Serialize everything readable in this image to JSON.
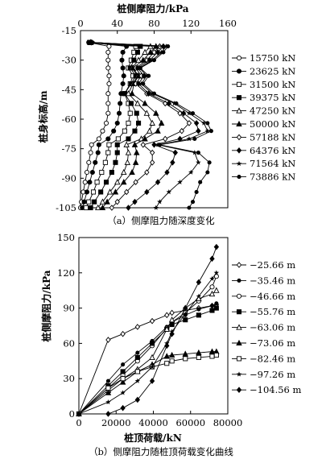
{
  "chart_data": [
    {
      "type": "line",
      "panel": "a",
      "caption": "（a）侧摩阻力随深度变化",
      "xlabel": "桩侧摩阻力/kPa",
      "ylabel": "桩身标高/m",
      "xlim": [
        0,
        160
      ],
      "ylim": [
        -105,
        -15
      ],
      "x_ticks": [
        0,
        40,
        80,
        120,
        160
      ],
      "y_ticks": [
        -15,
        -30,
        -45,
        -60,
        -75,
        -90,
        -105
      ],
      "x_axis_position": "top",
      "legend_position": "right",
      "y": [
        -105,
        -102,
        -97,
        -92,
        -87,
        -82,
        -77,
        -73,
        -70,
        -66,
        -62,
        -57,
        -52,
        -47,
        -42,
        -38,
        -34,
        -30,
        -26,
        -23,
        -21
      ],
      "series": [
        {
          "name": "15750 kN",
          "marker": "open-circle",
          "values": [
            0,
            1,
            3,
            5,
            7,
            9,
            11,
            12,
            20,
            24,
            28,
            30,
            30,
            30,
            31,
            31,
            30,
            30,
            30,
            31,
            9
          ]
        },
        {
          "name": "23625 kN",
          "marker": "filled-circle",
          "values": [
            2,
            4,
            7,
            10,
            13,
            16,
            19,
            20,
            30,
            36,
            40,
            42,
            43,
            44,
            46,
            47,
            46,
            45,
            46,
            50,
            9
          ]
        },
        {
          "name": "31500 kN",
          "marker": "open-square",
          "values": [
            6,
            9,
            14,
            18,
            23,
            27,
            30,
            31,
            41,
            48,
            52,
            54,
            52,
            48,
            54,
            57,
            52,
            55,
            58,
            60,
            10
          ]
        },
        {
          "name": "39375 kN",
          "marker": "filled-square",
          "values": [
            11,
            15,
            22,
            28,
            34,
            38,
            40,
            40,
            52,
            59,
            63,
            61,
            55,
            48,
            55,
            60,
            54,
            58,
            62,
            65,
            10
          ]
        },
        {
          "name": "47250 kN",
          "marker": "open-triangle",
          "values": [
            19,
            24,
            32,
            40,
            47,
            51,
            52,
            50,
            66,
            75,
            78,
            72,
            62,
            52,
            57,
            62,
            56,
            63,
            70,
            76,
            11
          ]
        },
        {
          "name": "50000 kN",
          "marker": "filled-triangle",
          "values": [
            24,
            29,
            38,
            47,
            56,
            60,
            61,
            59,
            70,
            84,
            88,
            82,
            70,
            56,
            58,
            63,
            57,
            68,
            76,
            82,
            11
          ]
        },
        {
          "name": "57188 kN",
          "marker": "open-diamond",
          "values": [
            34,
            40,
            50,
            60,
            72,
            78,
            78,
            68,
            92,
            110,
            118,
            108,
            92,
            72,
            60,
            66,
            60,
            72,
            80,
            86,
            12
          ]
        },
        {
          "name": "64376 kN",
          "marker": "filled-diamond",
          "values": [
            52,
            59,
            72,
            84,
            94,
            100,
            103,
            80,
            108,
            128,
            126,
            112,
            96,
            74,
            63,
            69,
            62,
            75,
            84,
            90,
            12
          ]
        },
        {
          "name": "71564 kN",
          "marker": "star",
          "values": [
            82,
            86,
            96,
            108,
            120,
            128,
            124,
            84,
            118,
            138,
            134,
            118,
            102,
            78,
            66,
            72,
            64,
            78,
            88,
            93,
            13
          ]
        },
        {
          "name": "73886 kN",
          "marker": "filled-dot",
          "values": [
            118,
            122,
            126,
            130,
            138,
            140,
            128,
            86,
            124,
            142,
            138,
            122,
            104,
            80,
            68,
            74,
            65,
            80,
            90,
            95,
            13
          ]
        }
      ]
    },
    {
      "type": "line",
      "panel": "b",
      "caption": "（b）侧摩阻力随桩顶荷载变化曲线",
      "xlabel": "桩顶荷载/kN",
      "ylabel": "桩侧摩阻力/kPa",
      "xlim": [
        0,
        80000
      ],
      "ylim": [
        0,
        150
      ],
      "x_ticks": [
        0,
        20000,
        40000,
        60000,
        80000
      ],
      "y_ticks": [
        0,
        30,
        60,
        90,
        120,
        150
      ],
      "legend_position": "right",
      "x": [
        0,
        15750,
        23625,
        31500,
        39375,
        47250,
        50000,
        57188,
        64376,
        71564,
        73886
      ],
      "series": [
        {
          "name": "−25.66 m",
          "marker": "open-diamond",
          "values": [
            0,
            63,
            68,
            74,
            79,
            84,
            86,
            88,
            90,
            92,
            93
          ]
        },
        {
          "name": "−35.46 m",
          "marker": "filled-dot",
          "values": [
            0,
            28,
            42,
            52,
            62,
            74,
            78,
            84,
            89,
            92,
            94
          ]
        },
        {
          "name": "−46.66 m",
          "marker": "open-circle",
          "values": [
            0,
            22,
            33,
            45,
            58,
            73,
            78,
            86,
            96,
            108,
            117
          ]
        },
        {
          "name": "−55.76 m",
          "marker": "filled-square",
          "values": [
            0,
            24,
            36,
            48,
            60,
            72,
            76,
            80,
            84,
            88,
            90
          ]
        },
        {
          "name": "−63.06 m",
          "marker": "open-triangle",
          "values": [
            0,
            20,
            30,
            38,
            48,
            72,
            80,
            90,
            98,
            102,
            105
          ]
        },
        {
          "name": "−73.06 m",
          "marker": "filled-triangle",
          "values": [
            0,
            18,
            27,
            36,
            42,
            49,
            50,
            51,
            52,
            53,
            53
          ]
        },
        {
          "name": "−82.46 m",
          "marker": "open-square",
          "values": [
            0,
            22,
            30,
            36,
            40,
            43,
            45,
            47,
            48,
            49,
            50
          ]
        },
        {
          "name": "−97.26 m",
          "marker": "star",
          "values": [
            0,
            10,
            18,
            28,
            40,
            60,
            70,
            85,
            100,
            115,
            120
          ]
        },
        {
          "name": "−104.56 m",
          "marker": "filled-diamond",
          "values": [
            0,
            0,
            5,
            12,
            28,
            58,
            68,
            90,
            112,
            132,
            142
          ]
        }
      ]
    }
  ]
}
